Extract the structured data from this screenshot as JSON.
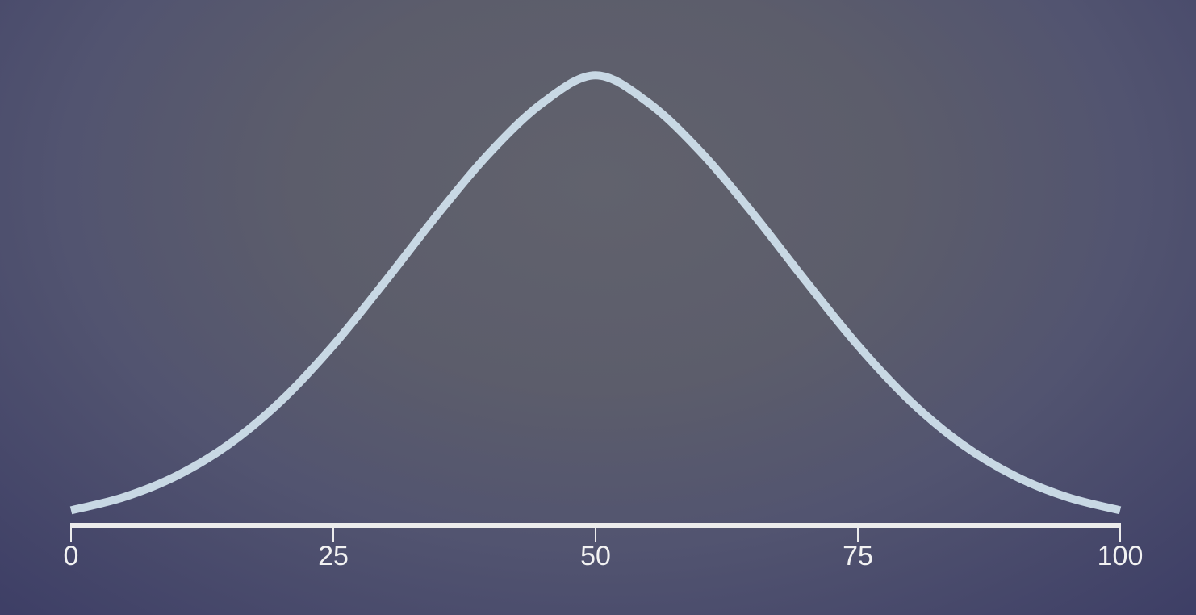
{
  "chart_data": {
    "type": "line",
    "title": "",
    "xlabel": "",
    "ylabel": "",
    "xlim": [
      0,
      100
    ],
    "x_ticks": [
      "0",
      "25",
      "50",
      "75",
      "100"
    ],
    "x_tick_values": [
      0,
      25,
      50,
      75,
      100
    ],
    "y_axis_shown": false,
    "grid": false,
    "legend": "none",
    "series": [
      {
        "x": [
          0,
          5,
          10,
          15,
          20,
          25,
          30,
          35,
          40,
          45,
          50,
          55,
          60,
          65,
          70,
          75,
          80,
          85,
          90,
          95,
          100
        ],
        "y": [
          0.032,
          0.06,
          0.105,
          0.172,
          0.265,
          0.384,
          0.522,
          0.665,
          0.797,
          0.902,
          0.96,
          0.902,
          0.797,
          0.665,
          0.522,
          0.384,
          0.265,
          0.172,
          0.105,
          0.06,
          0.032
        ]
      }
    ],
    "colors": {
      "curve": "#c8d8e4",
      "axis": "#ececec",
      "tick_text": "#f2f2f2"
    }
  }
}
